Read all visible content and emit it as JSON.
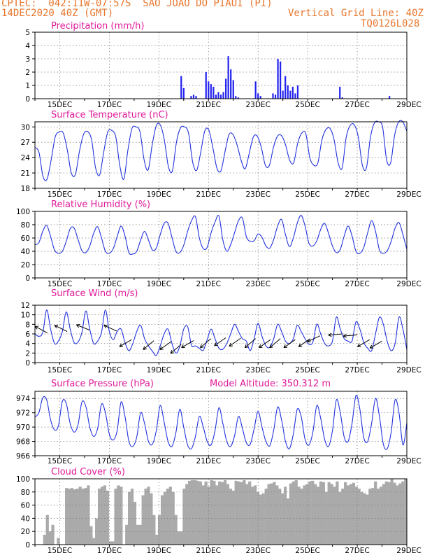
{
  "header": {
    "line1": "CPTEC:  042:11W-07:57S  SAO JOAO DO PIAUI (PI)",
    "line2_left": "14DEC2020 40Z (GMT)",
    "line2_right": "Vertical Grid Line: 40Z",
    "line3_right": "TQ0126L028"
  },
  "colors": {
    "header": "#e8762b",
    "title": "#e01a9a",
    "line": "#2233dd",
    "bar": "#2222ee",
    "cloud": "#aaaaaa"
  },
  "chart_data": [
    {
      "type": "bar",
      "title": "Precipitation (mm/h)",
      "x_ticks": [
        "15DEC",
        "17DEC",
        "19DEC",
        "21DEC",
        "23DEC",
        "25DEC",
        "27DEC",
        "29DEC"
      ],
      "ylim": [
        0,
        5
      ],
      "y_ticks": [
        0,
        1,
        2,
        3,
        4,
        5
      ],
      "x_range_days": [
        14.0,
        29.0
      ],
      "x": [
        19.9,
        20.0,
        20.3,
        20.4,
        20.5,
        20.9,
        21.0,
        21.1,
        21.2,
        21.3,
        21.4,
        21.5,
        21.6,
        21.7,
        21.8,
        21.9,
        22.0,
        22.1,
        22.2,
        22.9,
        23.0,
        23.1,
        23.6,
        23.7,
        23.8,
        23.9,
        24.0,
        24.1,
        24.2,
        24.3,
        24.4,
        24.5,
        24.6,
        26.3,
        26.4,
        28.3
      ],
      "values": [
        1.7,
        0.8,
        0.2,
        0.3,
        0.2,
        2.0,
        1.3,
        1.1,
        0.9,
        0.3,
        0.5,
        0.3,
        0.5,
        1.5,
        3.2,
        2.2,
        1.4,
        0.2,
        0.1,
        1.3,
        0.4,
        0.2,
        0.4,
        0.3,
        3.0,
        2.8,
        0.6,
        1.7,
        1.0,
        0.6,
        0.9,
        0.4,
        1.0,
        0.9,
        0.1,
        0.2
      ]
    },
    {
      "type": "line",
      "title": "Surface Temperature (nC)",
      "x_ticks": [
        "15DEC",
        "17DEC",
        "19DEC",
        "21DEC",
        "23DEC",
        "25DEC",
        "27DEC",
        "29DEC"
      ],
      "ylim": [
        18,
        31
      ],
      "y_ticks": [
        18,
        21,
        24,
        27,
        30
      ],
      "x_range_days": [
        14.0,
        29.0
      ],
      "values": [
        26.0,
        25.0,
        20.3,
        19.8,
        23.5,
        28.0,
        29.0,
        28.8,
        25.5,
        21.0,
        20.7,
        25.2,
        28.5,
        29.1,
        27.5,
        22.0,
        20.6,
        25.0,
        29.0,
        29.3,
        28.0,
        22.4,
        19.8,
        25.5,
        29.7,
        30.0,
        29.0,
        23.6,
        21.6,
        26.5,
        30.2,
        30.4,
        27.5,
        22.3,
        21.4,
        27.0,
        29.8,
        30.0,
        28.8,
        23.2,
        21.5,
        25.0,
        29.2,
        29.4,
        26.0,
        22.0,
        21.4,
        25.1,
        28.5,
        28.5,
        26.5,
        23.5,
        21.8,
        24.8,
        28.0,
        28.2,
        26.0,
        22.5,
        22.5,
        26.0,
        28.2,
        28.3,
        26.5,
        23.5,
        23.0,
        26.8,
        28.8,
        28.7,
        24.0,
        22.5,
        23.0,
        27.5,
        29.5,
        29.7,
        27.5,
        23.0,
        22.0,
        28.0,
        30.3,
        30.4,
        28.0,
        22.5,
        22.0,
        28.0,
        30.8,
        31.0,
        30.0,
        23.5,
        23.0,
        28.5,
        31.0,
        31.0,
        29.2
      ]
    },
    {
      "type": "line",
      "title": "Relative Humidity (%)",
      "x_ticks": [
        "15DEC",
        "17DEC",
        "19DEC",
        "21DEC",
        "23DEC",
        "25DEC",
        "27DEC",
        "29DEC"
      ],
      "ylim": [
        0,
        100
      ],
      "y_ticks": [
        0,
        20,
        40,
        60,
        80,
        100
      ],
      "x_range_days": [
        14.0,
        29.0
      ],
      "values": [
        50,
        53,
        70,
        79,
        62,
        42,
        37,
        40,
        55,
        74,
        75,
        58,
        41,
        38,
        48,
        67,
        77,
        60,
        40,
        37,
        44,
        62,
        78,
        63,
        38,
        36,
        40,
        57,
        70,
        57,
        42,
        45,
        65,
        82,
        82,
        61,
        40,
        38,
        49,
        70,
        86,
        92,
        60,
        44,
        46,
        68,
        84,
        93,
        57,
        40,
        50,
        68,
        86,
        90,
        62,
        55,
        56,
        66,
        61,
        48,
        45,
        58,
        78,
        88,
        65,
        47,
        60,
        82,
        94,
        78,
        52,
        48,
        56,
        73,
        82,
        67,
        48,
        38,
        43,
        63,
        78,
        63,
        40,
        37,
        46,
        68,
        86,
        70,
        42,
        37,
        41,
        55,
        75,
        83,
        65,
        43
      ]
    },
    {
      "type": "line",
      "title": "Surface Wind (m/s)",
      "x_ticks": [
        "15DEC",
        "17DEC",
        "19DEC",
        "21DEC",
        "23DEC",
        "25DEC",
        "27DEC",
        "29DEC"
      ],
      "ylim": [
        0,
        12
      ],
      "y_ticks": [
        0,
        2,
        4,
        6,
        8,
        10,
        12
      ],
      "x_range_days": [
        14.0,
        29.0
      ],
      "values": [
        6.0,
        5.5,
        6.3,
        11.0,
        7.0,
        4.0,
        4.5,
        6.5,
        10.6,
        7.0,
        4.2,
        4.3,
        6.3,
        10.8,
        7.0,
        4.0,
        4.5,
        6.3,
        11.0,
        6.5,
        4.8,
        6.5,
        7.0,
        4.2,
        2.5,
        4.0,
        6.5,
        7.8,
        5.0,
        3.5,
        2.4,
        1.5,
        3.5,
        6.0,
        7.0,
        4.0,
        2.0,
        3.4,
        7.0,
        7.5,
        3.6,
        3.5,
        3.0,
        2.6,
        4.8,
        7.0,
        5.0,
        3.0,
        2.8,
        4.0,
        6.0,
        8.0,
        6.5,
        5.0,
        4.5,
        2.5,
        5.0,
        8.2,
        5.5,
        3.5,
        3.2,
        5.0,
        8.0,
        6.5,
        4.5,
        4.0,
        5.0,
        7.8,
        6.5,
        5.0,
        3.8,
        4.3,
        8.0,
        6.0,
        4.0,
        3.5,
        4.5,
        9.5,
        7.0,
        5.0,
        4.5,
        4.5,
        8.5,
        7.0,
        4.2,
        3.0,
        2.5,
        6.0,
        9.5,
        8.0,
        4.4,
        2.5,
        4.0,
        9.5,
        7.0,
        2.7
      ]
    },
    {
      "type": "line",
      "title": "Surface Pressure (hPa)",
      "annotation": "Model Altitude: 350.312 m",
      "x_ticks": [
        "15DEC",
        "17DEC",
        "19DEC",
        "21DEC",
        "23DEC",
        "25DEC",
        "27DEC",
        "29DEC"
      ],
      "ylim": [
        966,
        975
      ],
      "y_ticks": [
        966,
        968,
        970,
        972,
        974
      ],
      "x_range_days": [
        14.0,
        29.0
      ],
      "values": [
        971.4,
        972.0,
        974.1,
        973.8,
        971.0,
        969.6,
        970.2,
        973.6,
        973.3,
        970.5,
        969.3,
        970.3,
        973.5,
        972.9,
        970.0,
        968.7,
        969.8,
        973.2,
        972.0,
        969.0,
        968.2,
        969.5,
        973.5,
        971.5,
        968.0,
        967.3,
        968.6,
        972.0,
        970.5,
        968.0,
        967.6,
        969.5,
        973.0,
        970.7,
        968.0,
        967.3,
        969.2,
        972.5,
        970.0,
        967.5,
        967.0,
        968.7,
        971.5,
        970.0,
        968.0,
        967.5,
        969.5,
        972.7,
        970.5,
        968.0,
        967.3,
        968.8,
        971.5,
        969.8,
        967.8,
        967.6,
        969.8,
        972.2,
        970.0,
        968.0,
        967.4,
        969.6,
        972.8,
        971.0,
        968.0,
        967.0,
        969.0,
        972.5,
        971.5,
        968.3,
        967.5,
        969.3,
        973.0,
        971.2,
        968.3,
        967.3,
        969.5,
        973.8,
        972.0,
        968.6,
        968.0,
        970.5,
        974.4,
        972.5,
        968.5,
        968.0,
        970.5,
        974.0,
        971.5,
        967.6,
        967.0,
        969.3,
        973.8,
        972.0,
        967.5,
        970.6
      ]
    },
    {
      "type": "area",
      "title": "Cloud Cover (%)",
      "x_ticks": [
        "15DEC",
        "17DEC",
        "19DEC",
        "21DEC",
        "23DEC",
        "25DEC",
        "27DEC",
        "29DEC"
      ],
      "ylim": [
        0,
        100
      ],
      "y_ticks": [
        0,
        20,
        40,
        60,
        80,
        100
      ],
      "x_range_days": [
        14.0,
        29.0
      ],
      "values": [
        0,
        0,
        0,
        15,
        45,
        20,
        30,
        0,
        10,
        0,
        0,
        86,
        85,
        86,
        84,
        85,
        88,
        85,
        86,
        90,
        28,
        10,
        40,
        85,
        88,
        90,
        82,
        5,
        5,
        85,
        90,
        88,
        0,
        30,
        80,
        85,
        65,
        30,
        30,
        75,
        85,
        88,
        78,
        45,
        15,
        45,
        75,
        80,
        85,
        88,
        80,
        45,
        20,
        20,
        85,
        92,
        97,
        98,
        98,
        97,
        96,
        90,
        96,
        88,
        98,
        97,
        90,
        96,
        95,
        98,
        92,
        85,
        82,
        97,
        96,
        95,
        98,
        92,
        96,
        88,
        90,
        80,
        76,
        78,
        85,
        92,
        93,
        95,
        90,
        85,
        78,
        88,
        70,
        93,
        96,
        98,
        88,
        85,
        90,
        92,
        96,
        97,
        92,
        88,
        96,
        95,
        80,
        95,
        92,
        88,
        96,
        80,
        85,
        95,
        90,
        92,
        94,
        88,
        85,
        80,
        78,
        76,
        85,
        86,
        96,
        85,
        88,
        92,
        96,
        95,
        100,
        94,
        90,
        93,
        96,
        100
      ]
    }
  ]
}
